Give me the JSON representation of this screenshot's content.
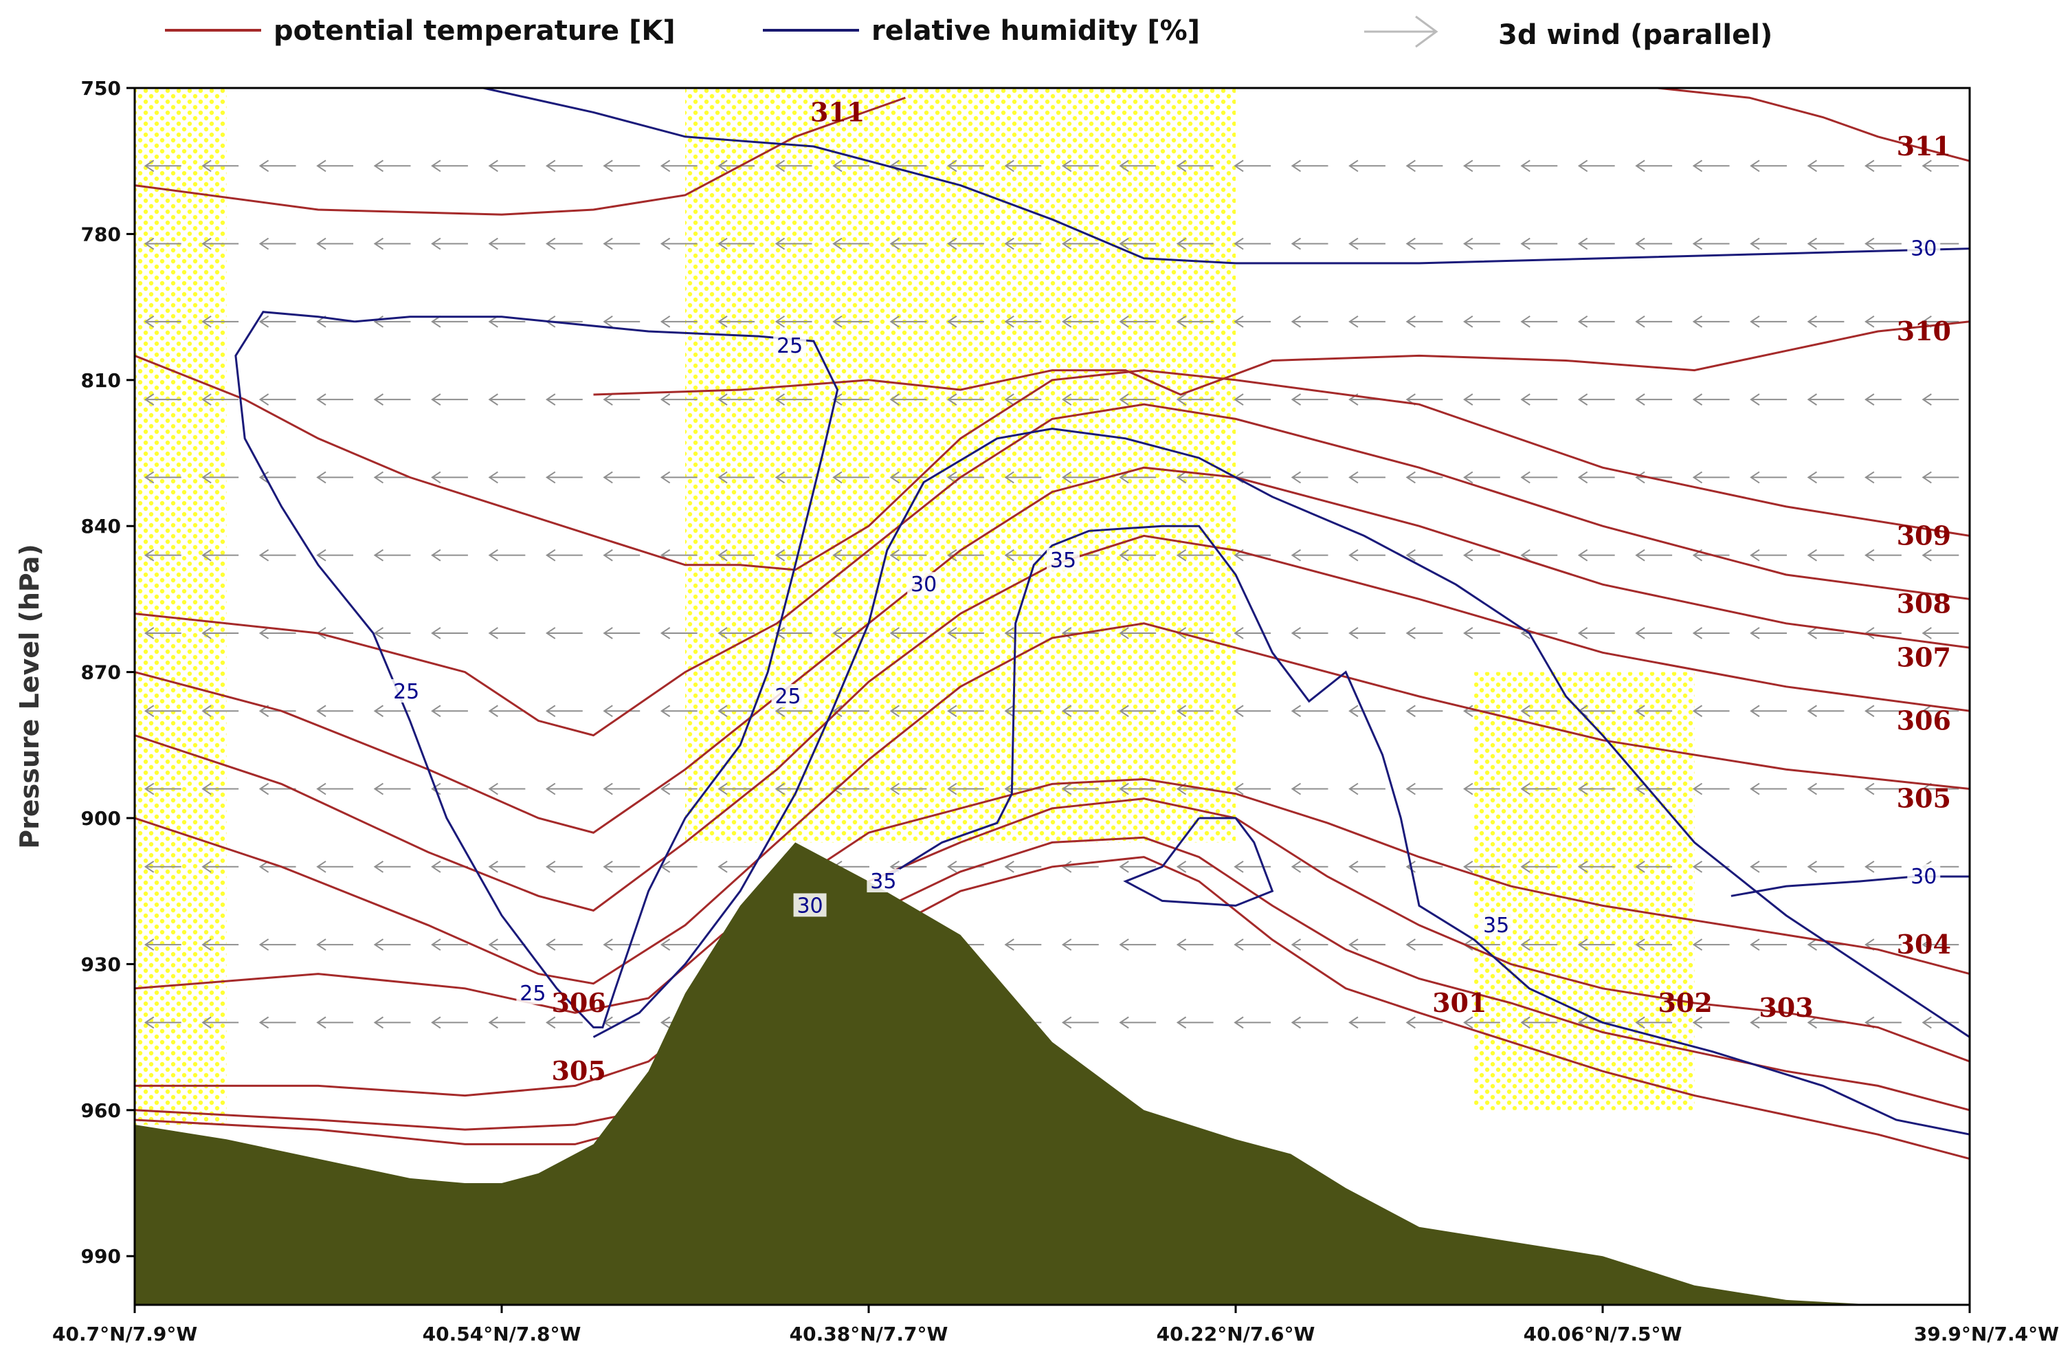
{
  "chart_data": {
    "type": "cross-section",
    "title": "",
    "ylabel": "Pressure Level (hPa)",
    "xlabel": "",
    "y_scale": "linear",
    "ylim": [
      1000,
      750
    ],
    "y_ticks": [
      750,
      780,
      810,
      840,
      870,
      900,
      930,
      960,
      990
    ],
    "x_tick_labels": [
      "40.7°N/7.9°W",
      "40.54°N/7.8°W",
      "40.38°N/7.7°W",
      "40.22°N/7.6°W",
      "40.06°N/7.5°W",
      "39.9°N/7.4°W"
    ],
    "legend_position": "top",
    "legend": [
      {
        "name": "potential temperature [K]",
        "symbol": "line",
        "color": "#a52a2a"
      },
      {
        "name": "relative humidity [%]",
        "symbol": "line",
        "color": "#191970"
      },
      {
        "name": "3d wind (parallel)",
        "symbol": "arrow",
        "color": "#aaaaaa"
      }
    ],
    "colors": {
      "theta": "#a52a2a",
      "theta_label": "#8b0000",
      "rh": "#1a1a7a",
      "rh_label": "#00008b",
      "terrain": "#4b5216",
      "stipple": "#ffff33",
      "wind": "#8f8f8f"
    },
    "terrain_surface": {
      "x": [
        0,
        0.05,
        0.1,
        0.15,
        0.18,
        0.2,
        0.22,
        0.25,
        0.28,
        0.3,
        0.33,
        0.36,
        0.4,
        0.45,
        0.5,
        0.55,
        0.6,
        0.63,
        0.66,
        0.7,
        0.75,
        0.8,
        0.85,
        0.9,
        0.95,
        1
      ],
      "p": [
        963,
        966,
        970,
        974,
        975,
        975,
        973,
        967,
        952,
        936,
        918,
        905,
        913,
        924,
        946,
        960,
        966,
        969,
        976,
        984,
        987,
        990,
        996,
        999,
        1000,
        1000
      ]
    },
    "theta_contour_labels": [
      {
        "text": "311",
        "x": 0.383,
        "p": 755
      },
      {
        "text": "311",
        "x": 0.975,
        "p": 762
      },
      {
        "text": "310",
        "x": 0.975,
        "p": 800
      },
      {
        "text": "309",
        "x": 0.975,
        "p": 842
      },
      {
        "text": "308",
        "x": 0.975,
        "p": 856
      },
      {
        "text": "307",
        "x": 0.975,
        "p": 867
      },
      {
        "text": "306",
        "x": 0.975,
        "p": 880
      },
      {
        "text": "305",
        "x": 0.975,
        "p": 896
      },
      {
        "text": "304",
        "x": 0.975,
        "p": 926
      },
      {
        "text": "303",
        "x": 0.9,
        "p": 939
      },
      {
        "text": "302",
        "x": 0.845,
        "p": 938
      },
      {
        "text": "301",
        "x": 0.722,
        "p": 938
      },
      {
        "text": "306",
        "x": 0.242,
        "p": 938
      },
      {
        "text": "305",
        "x": 0.242,
        "p": 952
      }
    ],
    "theta_contours": [
      {
        "value": 311,
        "x": [
          0,
          0.1,
          0.2,
          0.25,
          0.3,
          0.36,
          0.42
        ],
        "p": [
          770,
          775,
          776,
          775,
          772,
          760,
          752
        ]
      },
      {
        "value": 311,
        "x": [
          0.83,
          0.88,
          0.92,
          0.95,
          1.0
        ],
        "p": [
          750,
          752,
          756,
          760,
          765
        ]
      },
      {
        "value": 310,
        "x": [
          0.25,
          0.33,
          0.4,
          0.45,
          0.5,
          0.54,
          0.57,
          0.62,
          0.7,
          0.78,
          0.85,
          0.9,
          0.95,
          1.0
        ],
        "p": [
          813,
          812,
          810,
          812,
          808,
          808,
          813,
          806,
          805,
          806,
          808,
          804,
          800,
          798
        ]
      },
      {
        "value": 309,
        "x": [
          0,
          0.06,
          0.1,
          0.15,
          0.2,
          0.25,
          0.3,
          0.33,
          0.36,
          0.4,
          0.45,
          0.5,
          0.55,
          0.6,
          0.7,
          0.8,
          0.9,
          1.0
        ],
        "p": [
          805,
          814,
          822,
          830,
          836,
          842,
          848,
          848,
          849,
          840,
          822,
          810,
          808,
          810,
          815,
          828,
          836,
          842
        ]
      },
      {
        "value": 308,
        "x": [
          0,
          0.1,
          0.18,
          0.22,
          0.25,
          0.3,
          0.35,
          0.4,
          0.45,
          0.5,
          0.55,
          0.6,
          0.7,
          0.8,
          0.9,
          1.0
        ],
        "p": [
          858,
          862,
          870,
          880,
          883,
          870,
          860,
          845,
          830,
          818,
          815,
          818,
          828,
          840,
          850,
          855
        ]
      },
      {
        "value": 307,
        "x": [
          0,
          0.08,
          0.16,
          0.22,
          0.25,
          0.3,
          0.35,
          0.4,
          0.45,
          0.5,
          0.55,
          0.6,
          0.7,
          0.8,
          0.9,
          1.0
        ],
        "p": [
          870,
          878,
          890,
          900,
          903,
          890,
          875,
          860,
          845,
          833,
          828,
          830,
          840,
          852,
          860,
          865
        ]
      },
      {
        "value": 306,
        "x": [
          0,
          0.08,
          0.16,
          0.22,
          0.25,
          0.3,
          0.35,
          0.4,
          0.45,
          0.5,
          0.55,
          0.6,
          0.7,
          0.8,
          0.9,
          1.0
        ],
        "p": [
          883,
          893,
          907,
          916,
          919,
          905,
          890,
          872,
          858,
          848,
          842,
          845,
          855,
          866,
          873,
          878
        ]
      },
      {
        "value": 305,
        "x": [
          0,
          0.08,
          0.16,
          0.22,
          0.25,
          0.3,
          0.35,
          0.4,
          0.45,
          0.5,
          0.55,
          0.6,
          0.7,
          0.8,
          0.9,
          1.0
        ],
        "p": [
          900,
          910,
          922,
          932,
          934,
          922,
          905,
          888,
          873,
          863,
          860,
          865,
          875,
          884,
          890,
          894
        ]
      },
      {
        "value": 304,
        "x": [
          0,
          0.1,
          0.18,
          0.24,
          0.28,
          0.32,
          0.36,
          0.4,
          0.45,
          0.5,
          0.55,
          0.6,
          0.65,
          0.7,
          0.75,
          0.8,
          0.85,
          0.9,
          0.95,
          1.0
        ],
        "p": [
          935,
          932,
          935,
          940,
          937,
          924,
          913,
          903,
          898,
          893,
          892,
          895,
          901,
          908,
          914,
          918,
          921,
          924,
          927,
          932
        ]
      },
      {
        "value": 303,
        "x": [
          0,
          0.1,
          0.18,
          0.24,
          0.28,
          0.32,
          0.36,
          0.4,
          0.45,
          0.5,
          0.55,
          0.6,
          0.65,
          0.7,
          0.75,
          0.8,
          0.85,
          0.9,
          0.95,
          1.0
        ],
        "p": [
          955,
          955,
          957,
          955,
          950,
          938,
          925,
          913,
          905,
          898,
          896,
          900,
          912,
          922,
          930,
          935,
          938,
          940,
          943,
          950
        ]
      },
      {
        "value": 302,
        "x": [
          0,
          0.1,
          0.18,
          0.24,
          0.28,
          0.32,
          0.36,
          0.4,
          0.45,
          0.5,
          0.55,
          0.58,
          0.62,
          0.66,
          0.7,
          0.75,
          0.8,
          0.85,
          0.9,
          0.95,
          1.0
        ],
        "p": [
          960,
          962,
          964,
          963,
          960,
          950,
          935,
          920,
          911,
          905,
          904,
          908,
          918,
          927,
          933,
          938,
          944,
          948,
          952,
          955,
          960
        ]
      },
      {
        "value": 301,
        "x": [
          0,
          0.1,
          0.18,
          0.24,
          0.28,
          0.32,
          0.36,
          0.4,
          0.45,
          0.5,
          0.55,
          0.58,
          0.62,
          0.66,
          0.7,
          0.75,
          0.8,
          0.85,
          0.9,
          0.95,
          1.0
        ],
        "p": [
          962,
          964,
          967,
          967,
          963,
          954,
          940,
          925,
          915,
          910,
          908,
          913,
          925,
          935,
          940,
          946,
          952,
          957,
          961,
          965,
          970
        ]
      }
    ],
    "rh_contour_labels": [
      {
        "text": "30",
        "x": 0.975,
        "p": 783
      },
      {
        "text": "25",
        "x": 0.357,
        "p": 803
      },
      {
        "text": "25",
        "x": 0.148,
        "p": 874
      },
      {
        "text": "25",
        "x": 0.356,
        "p": 875
      },
      {
        "text": "25",
        "x": 0.217,
        "p": 936
      },
      {
        "text": "30",
        "x": 0.43,
        "p": 852
      },
      {
        "text": "35",
        "x": 0.506,
        "p": 847
      },
      {
        "text": "30",
        "x": 0.368,
        "p": 918
      },
      {
        "text": "35",
        "x": 0.408,
        "p": 913
      },
      {
        "text": "35",
        "x": 0.742,
        "p": 922
      },
      {
        "text": "30",
        "x": 0.975,
        "p": 912
      }
    ],
    "rh_contours": [
      {
        "value": 30,
        "x": [
          0.19,
          0.25,
          0.3,
          0.37,
          0.45,
          0.5,
          0.55,
          0.6,
          0.7,
          0.8,
          0.9,
          1.0
        ],
        "p": [
          750,
          755,
          760,
          762,
          770,
          777,
          785,
          786,
          786,
          785,
          784,
          783
        ]
      },
      {
        "value": 25,
        "x": [
          0.12,
          0.15,
          0.2,
          0.28,
          0.34,
          0.37,
          0.383,
          0.375,
          0.36,
          0.345,
          0.33,
          0.3,
          0.28,
          0.262,
          0.255,
          0.25,
          0.23,
          0.2,
          0.17,
          0.15,
          0.13,
          0.1,
          0.08,
          0.06,
          0.055,
          0.07,
          0.1,
          0.12
        ],
        "p": [
          798,
          797,
          797,
          800,
          801,
          802,
          812,
          825,
          848,
          870,
          885,
          900,
          915,
          935,
          943,
          943,
          935,
          920,
          900,
          880,
          862,
          848,
          836,
          822,
          805,
          796,
          797,
          798
        ]
      },
      {
        "value": 30,
        "x": [
          0.25,
          0.275,
          0.3,
          0.33,
          0.36,
          0.38,
          0.4,
          0.41,
          0.43,
          0.47,
          0.5,
          0.54,
          0.58,
          0.62,
          0.67,
          0.72,
          0.76,
          0.78,
          0.8,
          0.85,
          0.9,
          1.0
        ],
        "p": [
          945,
          940,
          930,
          915,
          895,
          878,
          860,
          845,
          831,
          822,
          820,
          822,
          826,
          834,
          842,
          852,
          862,
          875,
          883,
          905,
          920,
          945
        ]
      },
      {
        "value": 35,
        "x": [
          0.41,
          0.44,
          0.47,
          0.478,
          0.48,
          0.49,
          0.5,
          0.52,
          0.56,
          0.58,
          0.6,
          0.62,
          0.64,
          0.66,
          0.68,
          0.69,
          0.7,
          0.73,
          0.76,
          0.8,
          0.86,
          0.92,
          0.96,
          1.0
        ],
        "p": [
          912,
          905,
          901,
          895,
          860,
          848,
          844,
          841,
          840,
          840,
          850,
          866,
          876,
          870,
          887,
          900,
          918,
          925,
          935,
          942,
          948,
          955,
          962,
          965
        ]
      },
      {
        "value": 35,
        "x": [
          0.58,
          0.6,
          0.61,
          0.62,
          0.6,
          0.56,
          0.55,
          0.54,
          0.56,
          0.58
        ],
        "p": [
          900,
          900,
          905,
          915,
          918,
          917,
          915,
          913,
          910,
          900
        ]
      },
      {
        "value": 30,
        "x": [
          0.87,
          0.9,
          0.94,
          0.97,
          1.0
        ],
        "p": [
          916,
          914,
          913,
          912,
          912
        ]
      }
    ],
    "wind_field": {
      "direction": "parallel",
      "orientation": "toward-left",
      "rows_hpa": [
        766,
        782,
        798,
        814,
        830,
        846,
        862,
        878,
        894,
        910,
        926,
        942
      ]
    },
    "stipple_regions": [
      {
        "x0": 0.0,
        "x1": 0.05,
        "p0": 750,
        "p1": 963
      },
      {
        "x0": 0.3,
        "x1": 0.6,
        "p0": 750,
        "p1": 905
      },
      {
        "x0": 0.73,
        "x1": 0.85,
        "p0": 870,
        "p1": 960
      }
    ]
  }
}
